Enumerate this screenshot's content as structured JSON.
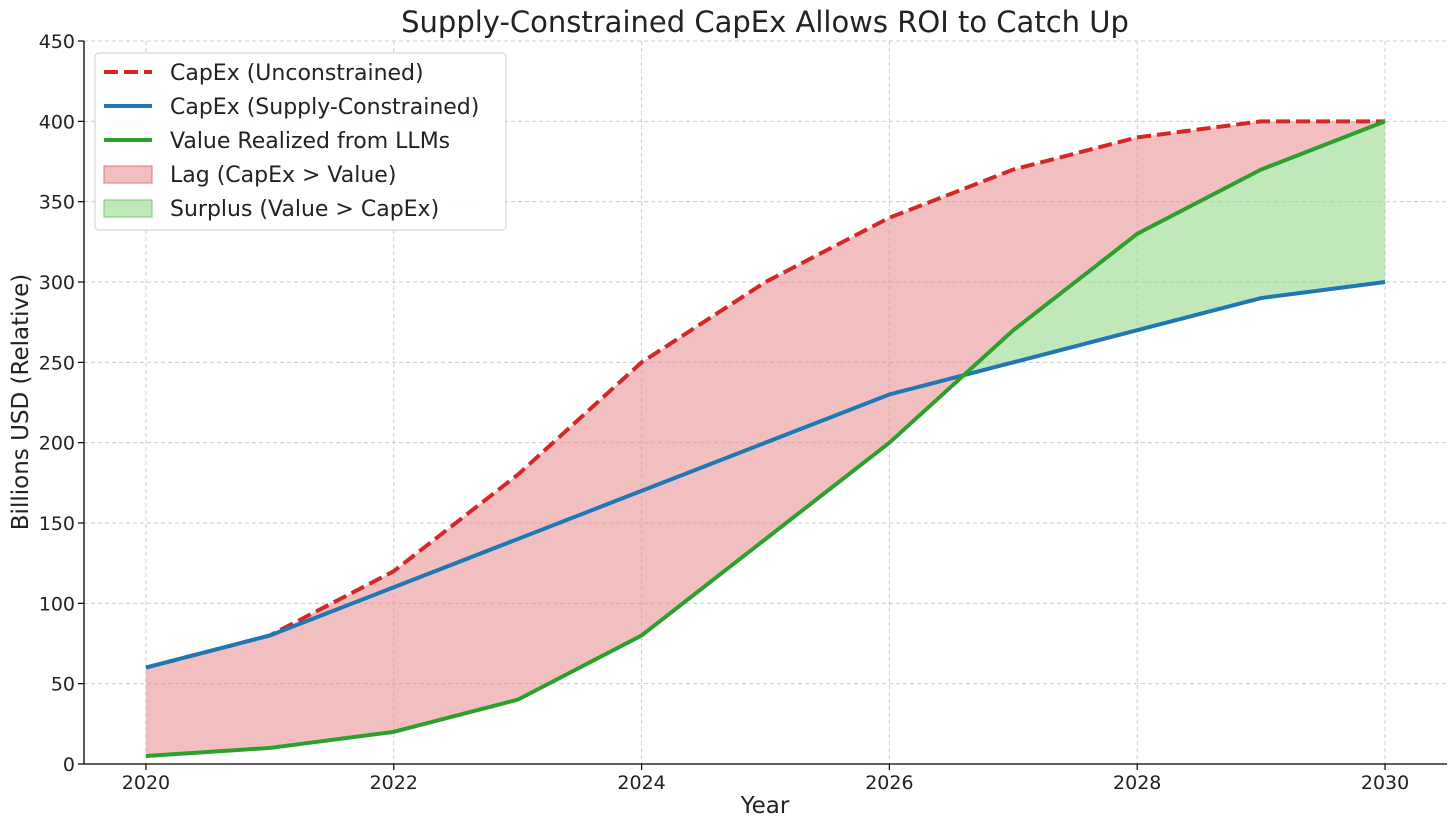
{
  "chart_data": {
    "type": "line",
    "title": "Supply-Constrained CapEx Allows ROI to Catch Up",
    "xlabel": "Year",
    "ylabel": "Billions USD (Relative)",
    "xlim": [
      2019.5,
      2030.5
    ],
    "ylim": [
      0,
      450
    ],
    "x_ticks": [
      2020,
      2022,
      2024,
      2026,
      2028,
      2030
    ],
    "y_ticks": [
      0,
      50,
      100,
      150,
      200,
      250,
      300,
      350,
      400,
      450
    ],
    "grid": true,
    "legend_position": "top-left",
    "x": [
      2020,
      2021,
      2022,
      2023,
      2024,
      2025,
      2026,
      2027,
      2028,
      2029,
      2030
    ],
    "series": [
      {
        "name": "CapEx (Unconstrained)",
        "values": [
          60,
          80,
          120,
          180,
          250,
          300,
          340,
          370,
          390,
          400,
          400
        ],
        "color": "#d62728",
        "style": "dashed"
      },
      {
        "name": "CapEx (Supply-Constrained)",
        "values": [
          60,
          80,
          110,
          140,
          170,
          200,
          230,
          250,
          270,
          290,
          300
        ],
        "color": "#1f77b4",
        "style": "solid"
      },
      {
        "name": "Value Realized from LLMs",
        "values": [
          5,
          10,
          20,
          40,
          80,
          140,
          200,
          270,
          330,
          370,
          400
        ],
        "color": "#2ca02c",
        "style": "solid"
      }
    ],
    "fills": [
      {
        "name": "Lag (CapEx > Value)",
        "color": "#e88a8d",
        "opacity": 0.55
      },
      {
        "name": "Surplus (Value > CapEx)",
        "color": "#98d98e",
        "opacity": 0.6
      }
    ]
  }
}
